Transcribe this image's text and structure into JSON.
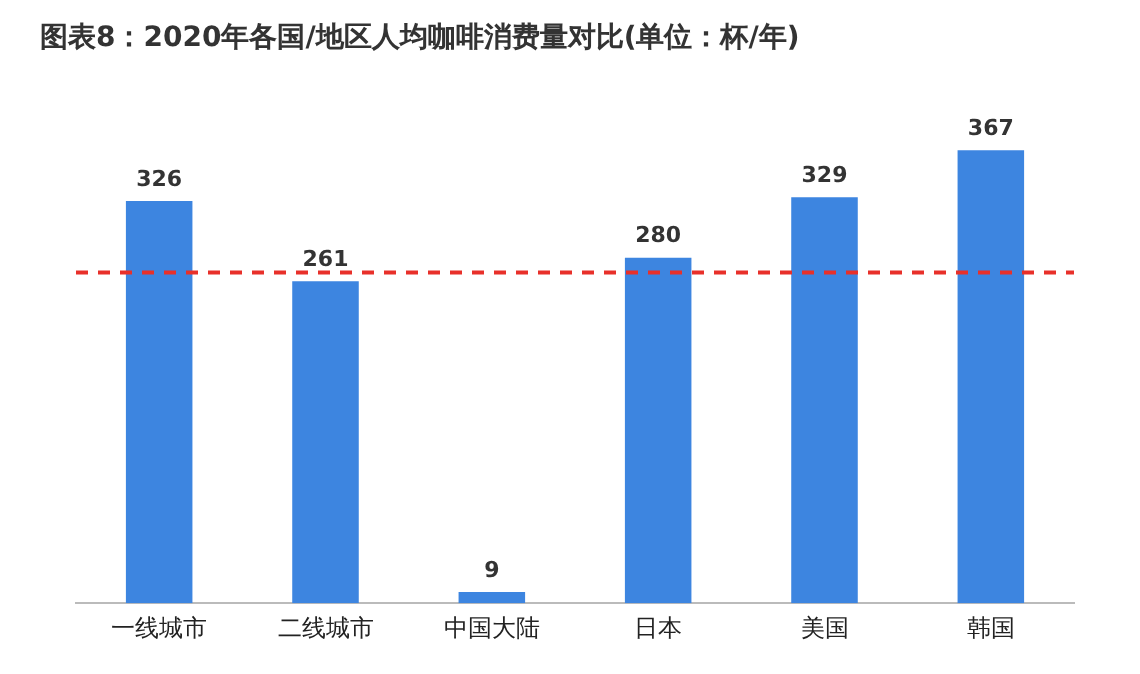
{
  "chart_data": {
    "type": "bar",
    "title": "图表8：2020年各国/地区人均咖啡消费量对比(单位：杯/年)",
    "categories": [
      "一线城市",
      "二线城市",
      "中国大陆",
      "日本",
      "美国",
      "韩国"
    ],
    "values": [
      326,
      261,
      9,
      280,
      329,
      367
    ],
    "color": "#3d85e0",
    "data_labels": true,
    "ref_lines": [
      {
        "axis": "y",
        "value": 268,
        "color": "#e8302a",
        "line_style": "dashed"
      }
    ]
  }
}
